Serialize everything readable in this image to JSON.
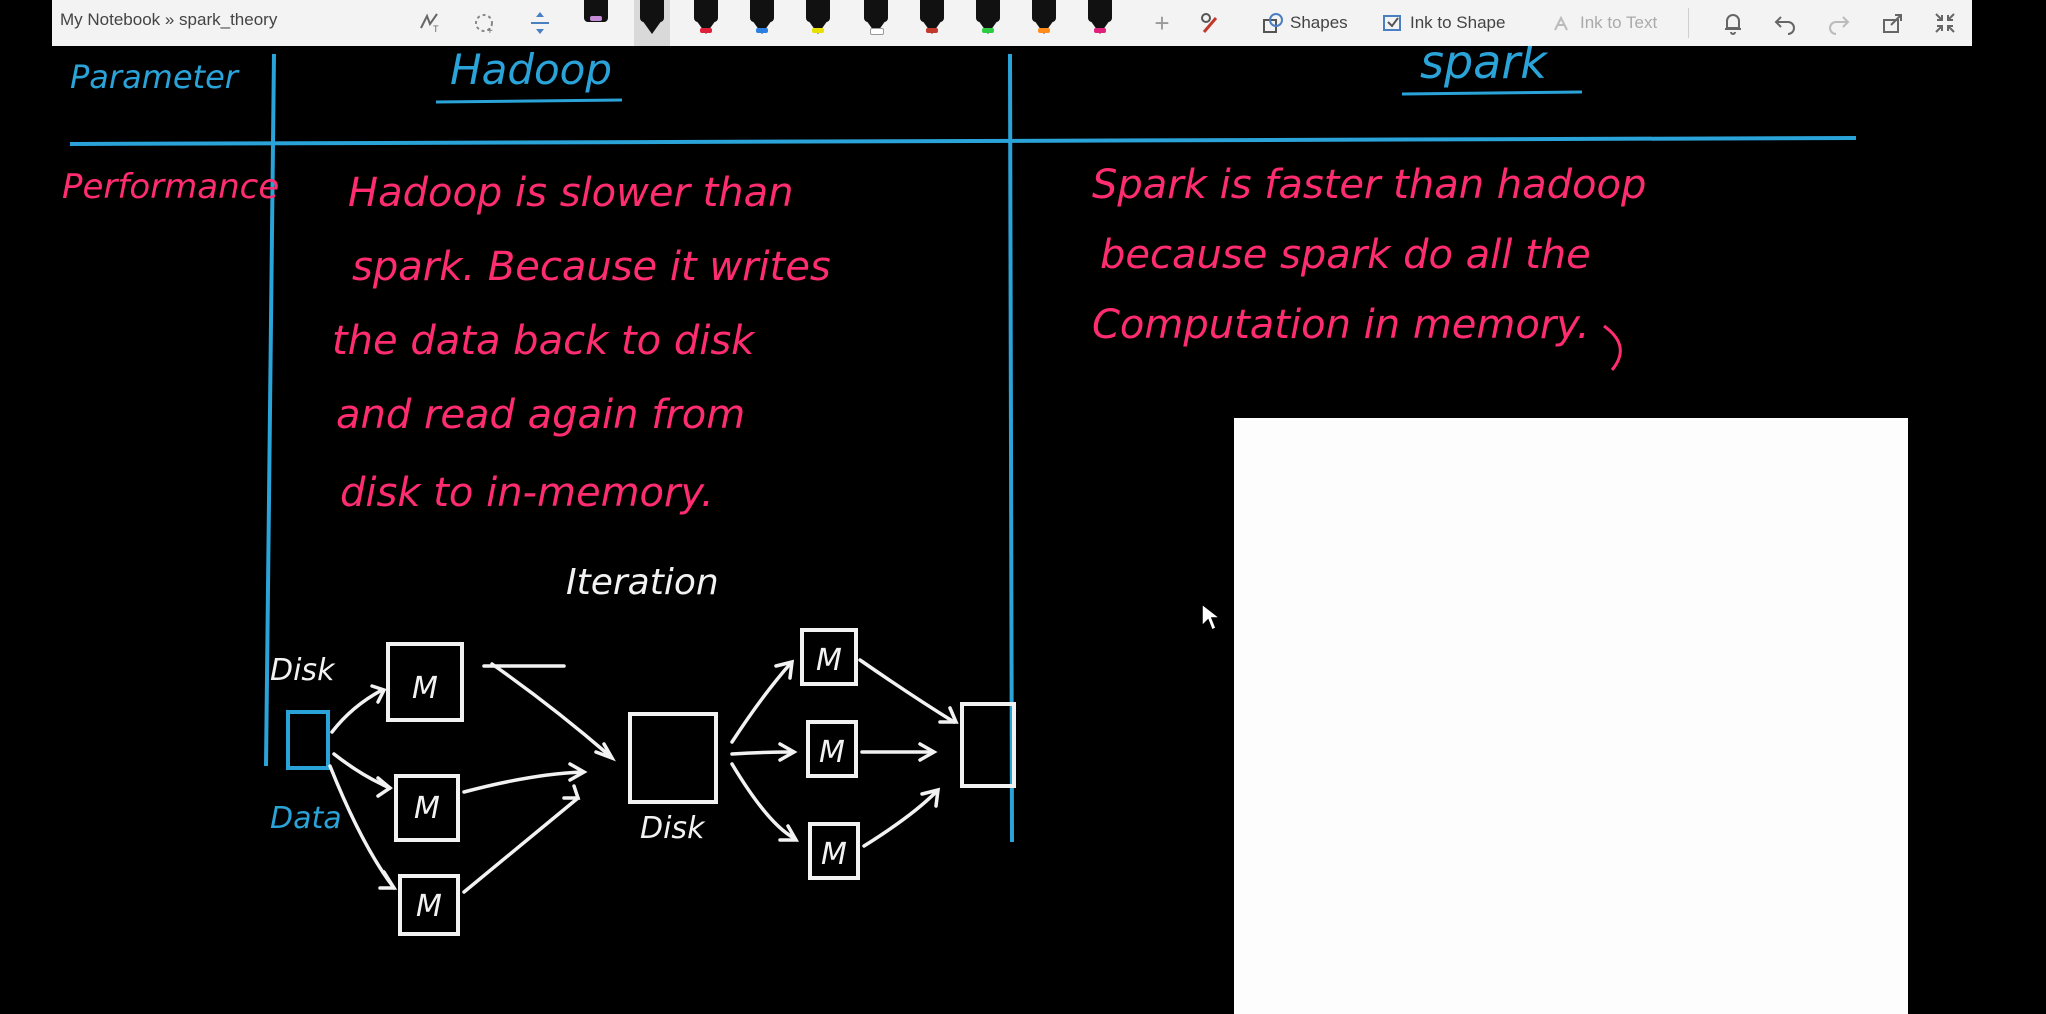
{
  "window": {
    "title": "My Notebook » spark_theory"
  },
  "toolbar": {
    "shapes_label": "Shapes",
    "ink_to_shape_label": "Ink to Shape",
    "ink_to_text_label": "Ink to Text",
    "pens": [
      {
        "name": "pen-purple",
        "band": "#c58bd6"
      },
      {
        "name": "pen-black-selected",
        "band": "#111111"
      },
      {
        "name": "pen-red",
        "band": "#e0203a"
      },
      {
        "name": "pen-blue",
        "band": "#2a7fe0"
      },
      {
        "name": "pen-yellow-highlighter",
        "band": "#e8e000"
      },
      {
        "name": "pen-white",
        "band": "#ffffff"
      },
      {
        "name": "pen-dark-red",
        "band": "#c0392b"
      },
      {
        "name": "pen-green",
        "band": "#2ecc40"
      },
      {
        "name": "pen-orange",
        "band": "#ff8c1a"
      },
      {
        "name": "pen-magenta",
        "band": "#e0207a"
      }
    ]
  },
  "notes": {
    "header_parameter": "Parameter",
    "header_hadoop": "Hadoop",
    "header_spark": "spark",
    "row_label": "Performance",
    "hadoop_text": [
      "Hadoop is slower than",
      "spark. Because it writes",
      "the data back to disk",
      "and read again from",
      "disk to in-memory."
    ],
    "spark_text": [
      "Spark is faster than hadoop",
      "because spark do all the",
      "Computation in memory."
    ],
    "diagram": {
      "title": "Iteration",
      "disk_label": "Disk",
      "data_label": "Data",
      "mid_disk_label": "Disk",
      "mapper_label": "M"
    }
  },
  "colors": {
    "ink_pink": "#ff2d6f",
    "ink_blue": "#2aa3d8",
    "ink_white": "#f2f2f2",
    "toolbar_bg": "#f3f3f3",
    "canvas_bg": "#000000"
  }
}
